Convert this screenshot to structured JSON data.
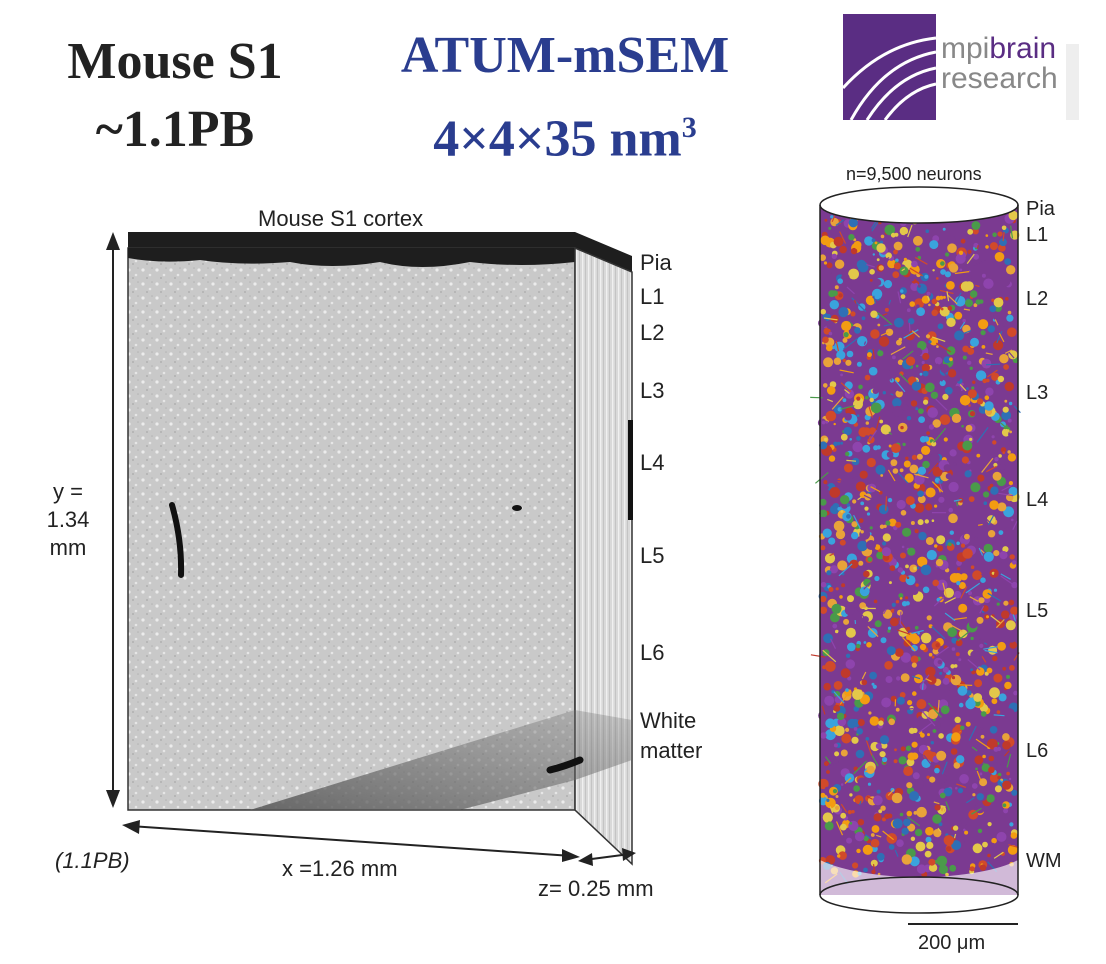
{
  "header": {
    "left_line1": "Mouse S1",
    "left_line2": "~1.1PB",
    "center_line1": "ATUM-mSEM",
    "center_line2": "4×4×35 nm",
    "center_sup": "3"
  },
  "logo": {
    "word1": "mpi",
    "word2": "brain",
    "word3": "research",
    "color": "#5a2d83"
  },
  "block": {
    "title": "Mouse S1 cortex",
    "y_label_1": "y =",
    "y_label_2": "1.34",
    "y_label_3": "mm",
    "x_label": "x =1.26 mm",
    "z_label": "z= 0.25 mm",
    "size_note": "(1.1PB)",
    "layers": [
      "Pia",
      "L1",
      "L2",
      "L3",
      "L4",
      "L5",
      "L6"
    ],
    "white_matter_1": "White",
    "white_matter_2": "matter"
  },
  "cylinder": {
    "title": "n=9,500 neurons",
    "layers": [
      "Pia",
      "L1",
      "L2",
      "L3",
      "L4",
      "L5",
      "L6",
      "WM"
    ],
    "scale_label": "200 μm",
    "colors": [
      "#e8a33a",
      "#3aa3dd",
      "#d14a2a",
      "#7b3a91",
      "#4a9a4a",
      "#e3c84a",
      "#2f6fb5",
      "#c0392b",
      "#8e44ad",
      "#f39c12"
    ]
  }
}
